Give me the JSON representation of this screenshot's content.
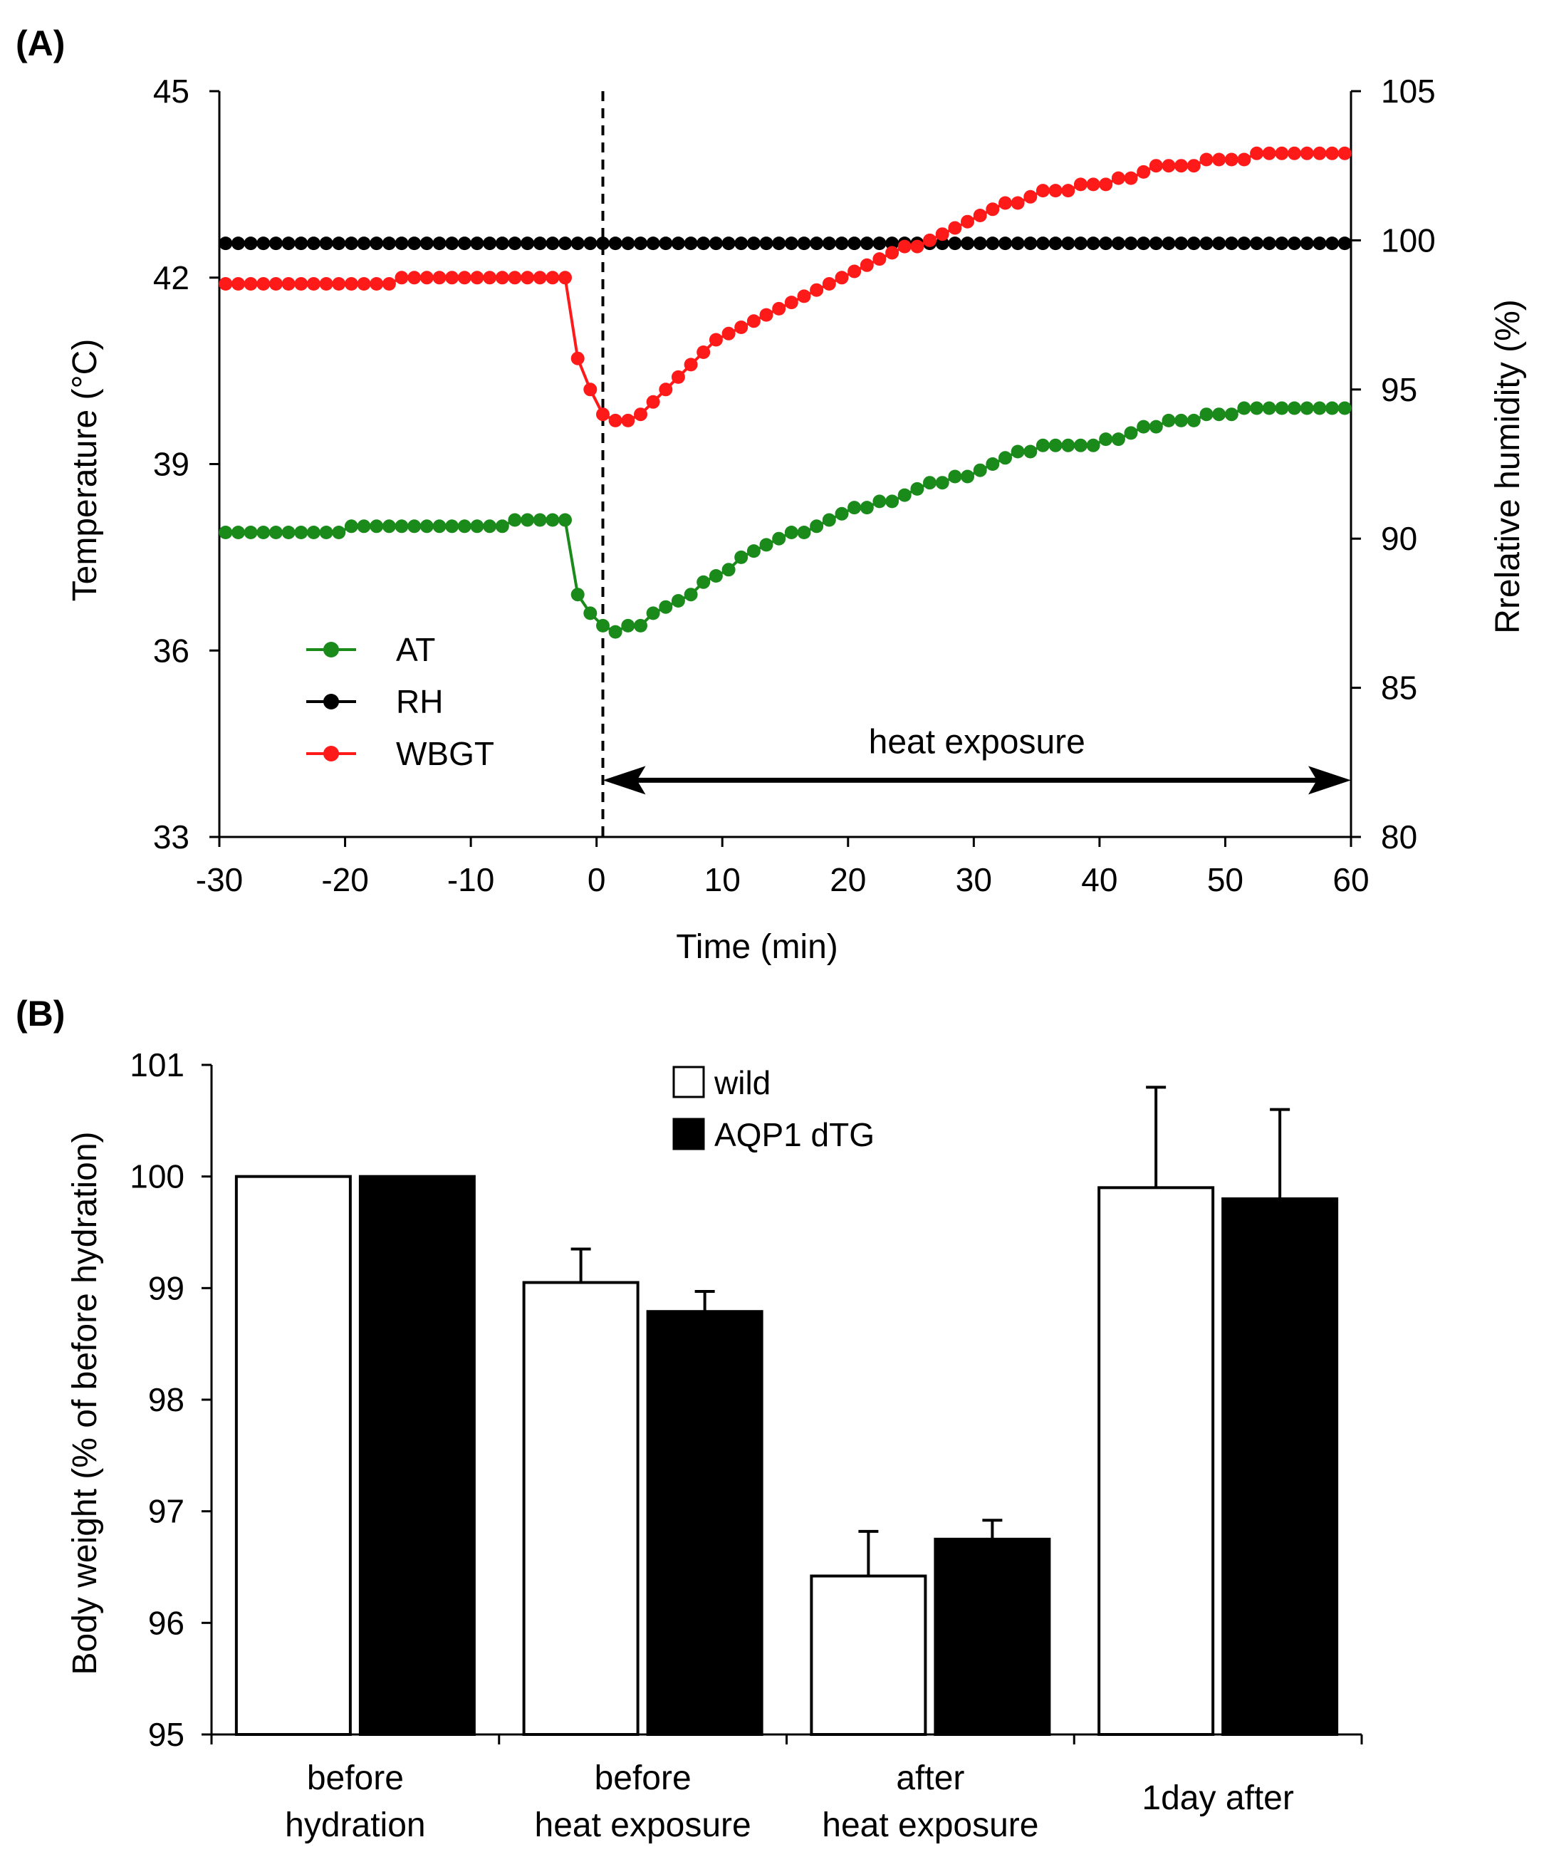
{
  "chart_data": [
    {
      "panel_label": "(A)",
      "type": "line",
      "xlabel": "Time (min)",
      "ylabel": "Temperature (°C)",
      "y2label": "Rrelative humidity (%)",
      "xlim": [
        -30,
        60
      ],
      "ylim": [
        33,
        45
      ],
      "y2lim": [
        80,
        105
      ],
      "xticks": [
        "-30",
        "-20",
        "-10",
        "0",
        "10",
        "20",
        "30",
        "40",
        "50",
        "60"
      ],
      "yticks": [
        "33",
        "36",
        "39",
        "42",
        "45"
      ],
      "y2ticks": [
        "80",
        "85",
        "90",
        "95",
        "100",
        "105"
      ],
      "vline_x": 0.5,
      "annotation": {
        "text": "heat exposure",
        "arrow_from": 0.5,
        "arrow_to": 60,
        "arrow_y_y2": 81.9
      },
      "series": [
        {
          "name": "AT",
          "axis": "left",
          "color": "#1a8a1a",
          "x": [
            -29.5,
            -28.5,
            -27.5,
            -26.5,
            -25.5,
            -24.5,
            -23.5,
            -22.5,
            -21.5,
            -20.5,
            -19.5,
            -18.5,
            -17.5,
            -16.5,
            -15.5,
            -14.5,
            -13.5,
            -12.5,
            -11.5,
            -10.5,
            -9.5,
            -8.5,
            -7.5,
            -6.5,
            -5.5,
            -4.5,
            -3.5,
            -2.5,
            -1.5,
            -0.5,
            0.5,
            1.5,
            2.5,
            3.5,
            4.5,
            5.5,
            6.5,
            7.5,
            8.5,
            9.5,
            10.5,
            11.5,
            12.5,
            13.5,
            14.5,
            15.5,
            16.5,
            17.5,
            18.5,
            19.5,
            20.5,
            21.5,
            22.5,
            23.5,
            24.5,
            25.5,
            26.5,
            27.5,
            28.5,
            29.5,
            30.5,
            31.5,
            32.5,
            33.5,
            34.5,
            35.5,
            36.5,
            37.5,
            38.5,
            39.5,
            40.5,
            41.5,
            42.5,
            43.5,
            44.5,
            45.5,
            46.5,
            47.5,
            48.5,
            49.5,
            50.5,
            51.5,
            52.5,
            53.5,
            54.5,
            55.5,
            56.5,
            57.5,
            58.5,
            59.5
          ],
          "values": [
            37.9,
            37.9,
            37.9,
            37.9,
            37.9,
            37.9,
            37.9,
            37.9,
            37.9,
            37.9,
            38.0,
            38.0,
            38.0,
            38.0,
            38.0,
            38.0,
            38.0,
            38.0,
            38.0,
            38.0,
            38.0,
            38.0,
            38.0,
            38.1,
            38.1,
            38.1,
            38.1,
            38.1,
            36.9,
            36.6,
            36.4,
            36.3,
            36.4,
            36.4,
            36.6,
            36.7,
            36.8,
            36.9,
            37.1,
            37.2,
            37.3,
            37.5,
            37.6,
            37.7,
            37.8,
            37.9,
            37.9,
            38.0,
            38.1,
            38.2,
            38.3,
            38.3,
            38.4,
            38.4,
            38.5,
            38.6,
            38.7,
            38.7,
            38.8,
            38.8,
            38.9,
            39.0,
            39.1,
            39.2,
            39.2,
            39.3,
            39.3,
            39.3,
            39.3,
            39.3,
            39.4,
            39.4,
            39.5,
            39.6,
            39.6,
            39.7,
            39.7,
            39.7,
            39.8,
            39.8,
            39.8,
            39.9,
            39.9,
            39.9,
            39.9,
            39.9,
            39.9,
            39.9,
            39.9,
            39.9
          ]
        },
        {
          "name": "RH",
          "axis": "right",
          "color": "#000000",
          "x": [
            -29.5,
            -28.5,
            -27.5,
            -26.5,
            -25.5,
            -24.5,
            -23.5,
            -22.5,
            -21.5,
            -20.5,
            -19.5,
            -18.5,
            -17.5,
            -16.5,
            -15.5,
            -14.5,
            -13.5,
            -12.5,
            -11.5,
            -10.5,
            -9.5,
            -8.5,
            -7.5,
            -6.5,
            -5.5,
            -4.5,
            -3.5,
            -2.5,
            -1.5,
            -0.5,
            0.5,
            1.5,
            2.5,
            3.5,
            4.5,
            5.5,
            6.5,
            7.5,
            8.5,
            9.5,
            10.5,
            11.5,
            12.5,
            13.5,
            14.5,
            15.5,
            16.5,
            17.5,
            18.5,
            19.5,
            20.5,
            21.5,
            22.5,
            23.5,
            24.5,
            25.5,
            26.5,
            27.5,
            28.5,
            29.5,
            30.5,
            31.5,
            32.5,
            33.5,
            34.5,
            35.5,
            36.5,
            37.5,
            38.5,
            39.5,
            40.5,
            41.5,
            42.5,
            43.5,
            44.5,
            45.5,
            46.5,
            47.5,
            48.5,
            49.5,
            50.5,
            51.5,
            52.5,
            53.5,
            54.5,
            55.5,
            56.5,
            57.5,
            58.5,
            59.5
          ],
          "values": [
            99.9,
            99.9,
            99.9,
            99.9,
            99.9,
            99.9,
            99.9,
            99.9,
            99.9,
            99.9,
            99.9,
            99.9,
            99.9,
            99.9,
            99.9,
            99.9,
            99.9,
            99.9,
            99.9,
            99.9,
            99.9,
            99.9,
            99.9,
            99.9,
            99.9,
            99.9,
            99.9,
            99.9,
            99.9,
            99.9,
            99.9,
            99.9,
            99.9,
            99.9,
            99.9,
            99.9,
            99.9,
            99.9,
            99.9,
            99.9,
            99.9,
            99.9,
            99.9,
            99.9,
            99.9,
            99.9,
            99.9,
            99.9,
            99.9,
            99.9,
            99.9,
            99.9,
            99.9,
            99.9,
            99.9,
            99.9,
            99.9,
            99.9,
            99.9,
            99.9,
            99.9,
            99.9,
            99.9,
            99.9,
            99.9,
            99.9,
            99.9,
            99.9,
            99.9,
            99.9,
            99.9,
            99.9,
            99.9,
            99.9,
            99.9,
            99.9,
            99.9,
            99.9,
            99.9,
            99.9,
            99.9,
            99.9,
            99.9,
            99.9,
            99.9,
            99.9,
            99.9,
            99.9,
            99.9,
            99.9
          ]
        },
        {
          "name": "WBGT",
          "axis": "left",
          "color": "#ff1a1a",
          "x": [
            -29.5,
            -28.5,
            -27.5,
            -26.5,
            -25.5,
            -24.5,
            -23.5,
            -22.5,
            -21.5,
            -20.5,
            -19.5,
            -18.5,
            -17.5,
            -16.5,
            -15.5,
            -14.5,
            -13.5,
            -12.5,
            -11.5,
            -10.5,
            -9.5,
            -8.5,
            -7.5,
            -6.5,
            -5.5,
            -4.5,
            -3.5,
            -2.5,
            -1.5,
            -0.5,
            0.5,
            1.5,
            2.5,
            3.5,
            4.5,
            5.5,
            6.5,
            7.5,
            8.5,
            9.5,
            10.5,
            11.5,
            12.5,
            13.5,
            14.5,
            15.5,
            16.5,
            17.5,
            18.5,
            19.5,
            20.5,
            21.5,
            22.5,
            23.5,
            24.5,
            25.5,
            26.5,
            27.5,
            28.5,
            29.5,
            30.5,
            31.5,
            32.5,
            33.5,
            34.5,
            35.5,
            36.5,
            37.5,
            38.5,
            39.5,
            40.5,
            41.5,
            42.5,
            43.5,
            44.5,
            45.5,
            46.5,
            47.5,
            48.5,
            49.5,
            50.5,
            51.5,
            52.5,
            53.5,
            54.5,
            55.5,
            56.5,
            57.5,
            58.5,
            59.5
          ],
          "values": [
            41.9,
            41.9,
            41.9,
            41.9,
            41.9,
            41.9,
            41.9,
            41.9,
            41.9,
            41.9,
            41.9,
            41.9,
            41.9,
            41.9,
            42.0,
            42.0,
            42.0,
            42.0,
            42.0,
            42.0,
            42.0,
            42.0,
            42.0,
            42.0,
            42.0,
            42.0,
            42.0,
            42.0,
            40.7,
            40.2,
            39.8,
            39.7,
            39.7,
            39.8,
            40.0,
            40.2,
            40.4,
            40.6,
            40.8,
            41.0,
            41.1,
            41.2,
            41.3,
            41.4,
            41.5,
            41.6,
            41.7,
            41.8,
            41.9,
            42.0,
            42.1,
            42.2,
            42.3,
            42.4,
            42.5,
            42.5,
            42.6,
            42.7,
            42.8,
            42.9,
            43.0,
            43.1,
            43.2,
            43.2,
            43.3,
            43.4,
            43.4,
            43.4,
            43.5,
            43.5,
            43.5,
            43.6,
            43.6,
            43.7,
            43.8,
            43.8,
            43.8,
            43.8,
            43.9,
            43.9,
            43.9,
            43.9,
            44.0,
            44.0,
            44.0,
            44.0,
            44.0,
            44.0,
            44.0,
            44.0
          ]
        }
      ],
      "legend": {
        "position": "lower-left",
        "entries": [
          "AT",
          "RH",
          "WBGT"
        ]
      }
    },
    {
      "panel_label": "(B)",
      "type": "bar",
      "xlabel": "",
      "ylabel": "Body weight (% of before hydration)",
      "ylim": [
        95,
        101
      ],
      "yticks": [
        "95",
        "96",
        "97",
        "98",
        "99",
        "100",
        "101"
      ],
      "categories": [
        [
          "before",
          "hydration"
        ],
        [
          "before",
          "heat exposure"
        ],
        [
          "after",
          "heat exposure"
        ],
        [
          "1day after"
        ]
      ],
      "series": [
        {
          "name": "wild",
          "fill": "#ffffff",
          "values": [
            100.0,
            99.05,
            96.42,
            99.9
          ],
          "error": [
            0,
            0.3,
            0.4,
            0.9
          ]
        },
        {
          "name": "AQP1 dTG",
          "fill": "#000000",
          "values": [
            100.0,
            98.79,
            96.75,
            99.8
          ],
          "error": [
            0,
            0.18,
            0.17,
            0.8
          ]
        }
      ],
      "legend": {
        "position": "top-center",
        "entries": [
          "wild",
          "AQP1 dTG"
        ]
      }
    }
  ]
}
